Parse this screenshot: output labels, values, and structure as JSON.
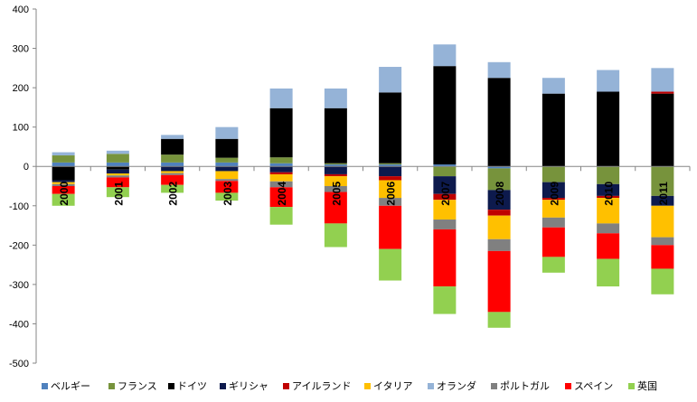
{
  "chart_data": {
    "type": "bar",
    "stacked": true,
    "title": "",
    "xlabel": "",
    "ylabel": "",
    "ylim": [
      -500,
      400
    ],
    "yticks": [
      400,
      300,
      200,
      100,
      0,
      -100,
      -200,
      -300,
      -400,
      -500
    ],
    "grid": false,
    "legend_position": "bottom",
    "categories": [
      "2000",
      "2001",
      "2002",
      "2003",
      "2004",
      "2005",
      "2006",
      "2007",
      "2008",
      "2009",
      "2010",
      "2011"
    ],
    "series": [
      {
        "name": "ベルギー",
        "color": "#4F81BD",
        "values": [
          10,
          10,
          10,
          10,
          8,
          5,
          5,
          5,
          -5,
          0,
          0,
          0
        ]
      },
      {
        "name": "フランス",
        "color": "#77933C",
        "values": [
          18,
          22,
          20,
          12,
          15,
          3,
          3,
          -25,
          -55,
          -40,
          -45,
          -75
        ]
      },
      {
        "name": "ドイツ",
        "color": "#000000",
        "values": [
          -35,
          -8,
          40,
          48,
          125,
          140,
          180,
          250,
          225,
          185,
          190,
          185
        ]
      },
      {
        "name": "ギリシャ",
        "color": "#0D1A4D",
        "values": [
          -5,
          -10,
          -12,
          -12,
          -15,
          -20,
          -25,
          -45,
          -50,
          -40,
          -30,
          -25
        ]
      },
      {
        "name": "アイルランド",
        "color": "#C00000",
        "values": [
          0,
          0,
          0,
          0,
          -5,
          -5,
          -10,
          -15,
          -15,
          -5,
          -5,
          5
        ]
      },
      {
        "name": "イタリア",
        "color": "#FFC000",
        "values": [
          -5,
          -5,
          -5,
          -20,
          -18,
          -25,
          -45,
          -50,
          -60,
          -45,
          -65,
          -80
        ]
      },
      {
        "name": "オランダ",
        "color": "#95B3D7",
        "values": [
          8,
          8,
          10,
          30,
          50,
          50,
          65,
          55,
          40,
          40,
          55,
          60
        ]
      },
      {
        "name": "ポルトガル",
        "color": "#808080",
        "values": [
          -5,
          -5,
          -5,
          -5,
          -15,
          -15,
          -20,
          -25,
          -30,
          -25,
          -25,
          -20
        ]
      },
      {
        "name": "スペイン",
        "color": "#FF0000",
        "values": [
          -20,
          -25,
          -25,
          -30,
          -50,
          -80,
          -110,
          -145,
          -155,
          -75,
          -65,
          -60
        ]
      },
      {
        "name": "英国",
        "color": "#92D050",
        "values": [
          -30,
          -25,
          -20,
          -20,
          -45,
          -60,
          -80,
          -70,
          -40,
          -40,
          -70,
          -65
        ]
      }
    ]
  }
}
